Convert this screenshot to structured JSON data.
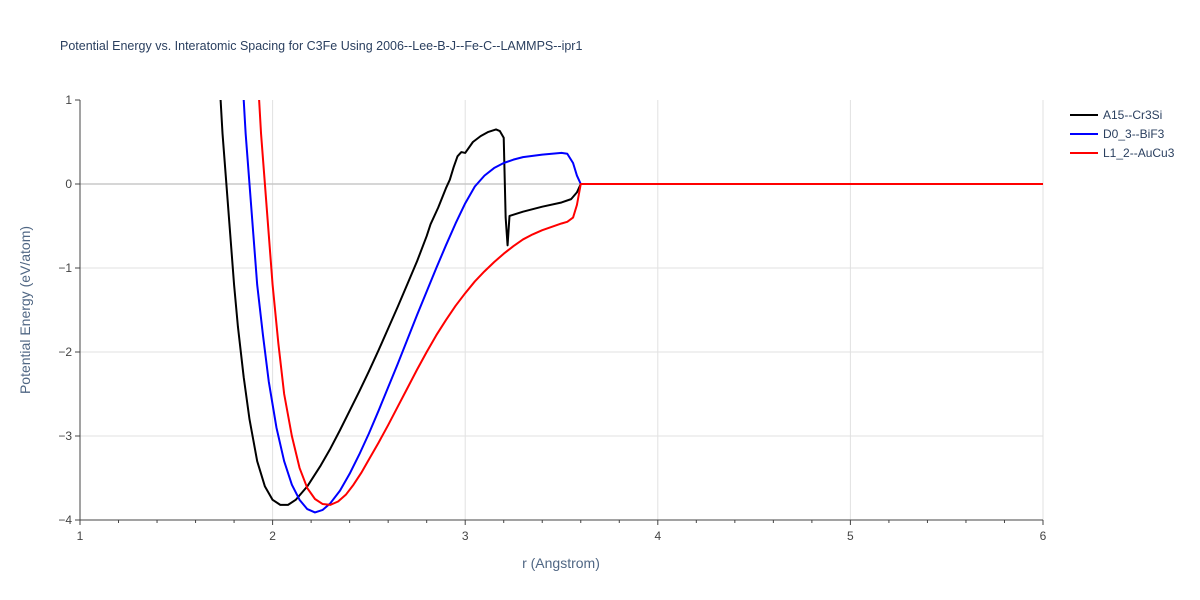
{
  "chart_data": {
    "type": "line",
    "title": "Potential Energy vs. Interatomic Spacing for C3Fe Using 2006--Lee-B-J--Fe-C--LAMMPS--ipr1",
    "xlabel": "r (Angstrom)",
    "ylabel": "Potential Energy (eV/atom)",
    "xlim": [
      1,
      6
    ],
    "ylim": [
      -4,
      1
    ],
    "x_ticks": [
      "1",
      "2",
      "3",
      "4",
      "5",
      "6"
    ],
    "y_ticks": [
      "1",
      "0",
      "−1",
      "−2",
      "−3",
      "−4"
    ],
    "grid": true,
    "legend_position": "top-right",
    "series": [
      {
        "name": "A15--Cr3Si",
        "color": "#000000",
        "points": [
          [
            1.73,
            1.0
          ],
          [
            1.74,
            0.6
          ],
          [
            1.76,
            0.0
          ],
          [
            1.78,
            -0.6
          ],
          [
            1.8,
            -1.2
          ],
          [
            1.82,
            -1.7
          ],
          [
            1.85,
            -2.3
          ],
          [
            1.88,
            -2.8
          ],
          [
            1.92,
            -3.3
          ],
          [
            1.96,
            -3.6
          ],
          [
            2.0,
            -3.76
          ],
          [
            2.04,
            -3.82
          ],
          [
            2.08,
            -3.82
          ],
          [
            2.12,
            -3.76
          ],
          [
            2.18,
            -3.6
          ],
          [
            2.25,
            -3.35
          ],
          [
            2.3,
            -3.15
          ],
          [
            2.35,
            -2.93
          ],
          [
            2.4,
            -2.7
          ],
          [
            2.45,
            -2.47
          ],
          [
            2.5,
            -2.23
          ],
          [
            2.55,
            -1.98
          ],
          [
            2.6,
            -1.72
          ],
          [
            2.65,
            -1.46
          ],
          [
            2.7,
            -1.19
          ],
          [
            2.75,
            -0.92
          ],
          [
            2.8,
            -0.62
          ],
          [
            2.82,
            -0.48
          ],
          [
            2.86,
            -0.28
          ],
          [
            2.9,
            -0.05
          ],
          [
            2.92,
            0.05
          ],
          [
            2.94,
            0.2
          ],
          [
            2.96,
            0.33
          ],
          [
            2.98,
            0.38
          ],
          [
            3.0,
            0.37
          ],
          [
            3.04,
            0.5
          ],
          [
            3.08,
            0.57
          ],
          [
            3.12,
            0.62
          ],
          [
            3.16,
            0.65
          ],
          [
            3.18,
            0.63
          ],
          [
            3.2,
            0.55
          ],
          [
            3.21,
            -0.4
          ],
          [
            3.22,
            -0.73
          ],
          [
            3.23,
            -0.38
          ],
          [
            3.3,
            -0.33
          ],
          [
            3.4,
            -0.27
          ],
          [
            3.5,
            -0.22
          ],
          [
            3.55,
            -0.18
          ],
          [
            3.58,
            -0.1
          ],
          [
            3.6,
            0.0
          ],
          [
            6.0,
            0.0
          ]
        ]
      },
      {
        "name": "D0_3--BiF3",
        "color": "#0000ff",
        "points": [
          [
            1.85,
            1.0
          ],
          [
            1.86,
            0.6
          ],
          [
            1.88,
            0.0
          ],
          [
            1.9,
            -0.6
          ],
          [
            1.92,
            -1.2
          ],
          [
            1.95,
            -1.8
          ],
          [
            1.98,
            -2.35
          ],
          [
            2.02,
            -2.9
          ],
          [
            2.06,
            -3.3
          ],
          [
            2.1,
            -3.58
          ],
          [
            2.14,
            -3.76
          ],
          [
            2.18,
            -3.87
          ],
          [
            2.22,
            -3.91
          ],
          [
            2.26,
            -3.88
          ],
          [
            2.3,
            -3.8
          ],
          [
            2.35,
            -3.65
          ],
          [
            2.4,
            -3.45
          ],
          [
            2.45,
            -3.22
          ],
          [
            2.5,
            -2.97
          ],
          [
            2.55,
            -2.7
          ],
          [
            2.6,
            -2.42
          ],
          [
            2.65,
            -2.14
          ],
          [
            2.7,
            -1.85
          ],
          [
            2.75,
            -1.56
          ],
          [
            2.8,
            -1.28
          ],
          [
            2.85,
            -1.0
          ],
          [
            2.9,
            -0.73
          ],
          [
            2.95,
            -0.47
          ],
          [
            3.0,
            -0.23
          ],
          [
            3.05,
            -0.03
          ],
          [
            3.1,
            0.1
          ],
          [
            3.15,
            0.19
          ],
          [
            3.2,
            0.25
          ],
          [
            3.25,
            0.29
          ],
          [
            3.3,
            0.32
          ],
          [
            3.4,
            0.35
          ],
          [
            3.5,
            0.37
          ],
          [
            3.53,
            0.36
          ],
          [
            3.56,
            0.25
          ],
          [
            3.58,
            0.1
          ],
          [
            3.6,
            0.0
          ],
          [
            6.0,
            0.0
          ]
        ]
      },
      {
        "name": "L1_2--AuCu3",
        "color": "#ff0000",
        "points": [
          [
            1.93,
            1.0
          ],
          [
            1.94,
            0.6
          ],
          [
            1.96,
            0.0
          ],
          [
            1.98,
            -0.6
          ],
          [
            2.0,
            -1.2
          ],
          [
            2.03,
            -1.9
          ],
          [
            2.06,
            -2.5
          ],
          [
            2.1,
            -3.0
          ],
          [
            2.14,
            -3.38
          ],
          [
            2.18,
            -3.62
          ],
          [
            2.22,
            -3.75
          ],
          [
            2.26,
            -3.81
          ],
          [
            2.3,
            -3.82
          ],
          [
            2.34,
            -3.78
          ],
          [
            2.38,
            -3.7
          ],
          [
            2.42,
            -3.58
          ],
          [
            2.46,
            -3.44
          ],
          [
            2.5,
            -3.28
          ],
          [
            2.55,
            -3.08
          ],
          [
            2.6,
            -2.87
          ],
          [
            2.65,
            -2.65
          ],
          [
            2.7,
            -2.43
          ],
          [
            2.75,
            -2.21
          ],
          [
            2.8,
            -2.0
          ],
          [
            2.85,
            -1.8
          ],
          [
            2.9,
            -1.62
          ],
          [
            2.95,
            -1.45
          ],
          [
            3.0,
            -1.3
          ],
          [
            3.05,
            -1.16
          ],
          [
            3.1,
            -1.04
          ],
          [
            3.15,
            -0.93
          ],
          [
            3.2,
            -0.83
          ],
          [
            3.25,
            -0.74
          ],
          [
            3.3,
            -0.66
          ],
          [
            3.35,
            -0.6
          ],
          [
            3.4,
            -0.55
          ],
          [
            3.45,
            -0.51
          ],
          [
            3.5,
            -0.47
          ],
          [
            3.53,
            -0.45
          ],
          [
            3.56,
            -0.4
          ],
          [
            3.58,
            -0.25
          ],
          [
            3.6,
            0.0
          ],
          [
            6.0,
            0.0
          ]
        ]
      }
    ]
  }
}
